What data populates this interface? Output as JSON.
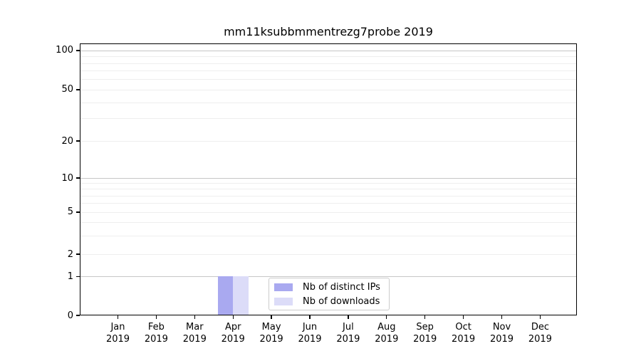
{
  "chart_data": {
    "type": "bar",
    "title": "mm11ksubbmmentrezg7probe 2019",
    "categories": [
      {
        "month": "Jan",
        "year": "2019"
      },
      {
        "month": "Feb",
        "year": "2019"
      },
      {
        "month": "Mar",
        "year": "2019"
      },
      {
        "month": "Apr",
        "year": "2019"
      },
      {
        "month": "May",
        "year": "2019"
      },
      {
        "month": "Jun",
        "year": "2019"
      },
      {
        "month": "Jul",
        "year": "2019"
      },
      {
        "month": "Aug",
        "year": "2019"
      },
      {
        "month": "Sep",
        "year": "2019"
      },
      {
        "month": "Oct",
        "year": "2019"
      },
      {
        "month": "Nov",
        "year": "2019"
      },
      {
        "month": "Dec",
        "year": "2019"
      }
    ],
    "series": [
      {
        "name": "Nb of distinct IPs",
        "color": "#a9a9f0",
        "values": [
          0,
          0,
          0,
          1,
          0,
          0,
          0,
          0,
          0,
          0,
          0,
          0
        ]
      },
      {
        "name": "Nb of downloads",
        "color": "#dcdcf8",
        "values": [
          0,
          0,
          0,
          1,
          0,
          0,
          0,
          0,
          0,
          0,
          0,
          0
        ]
      }
    ],
    "y_axis": {
      "scale": "log-like with 0 baseline",
      "ticks": [
        0,
        1,
        2,
        5,
        10,
        20,
        50,
        100
      ],
      "minor_ticks": [
        3,
        4,
        6,
        7,
        8,
        9,
        30,
        40,
        60,
        70,
        80,
        90
      ]
    },
    "xlabel": "",
    "ylabel": "",
    "grid": true,
    "legend_position": "lower center inside plot",
    "colors": {
      "decade_gridline": "#c6c6c6",
      "minor_gridline": "#eeeeee",
      "axis": "#000000",
      "legend_border": "#cccccc"
    }
  }
}
